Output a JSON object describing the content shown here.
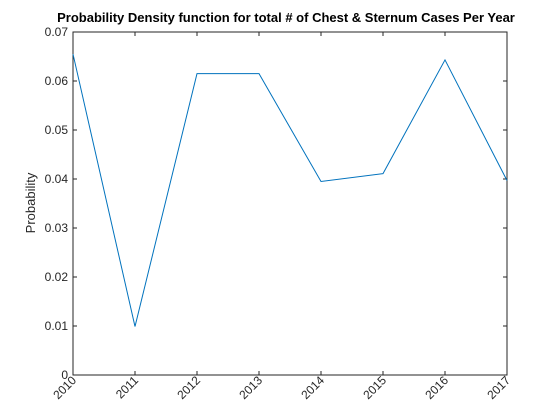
{
  "chart_data": {
    "type": "line",
    "title": "Probability Density function for total # of Chest & Sternum Cases Per Year",
    "xlabel": "",
    "ylabel": "Probability",
    "x": [
      2010,
      2011,
      2012,
      2013,
      2014,
      2015,
      2016,
      2017
    ],
    "series": [
      {
        "values": [
          0.0655,
          0.0099,
          0.0615,
          0.0615,
          0.0395,
          0.0411,
          0.0643,
          0.0397
        ]
      }
    ],
    "xlim": [
      2010,
      2017
    ],
    "ylim": [
      0,
      0.07
    ],
    "xticks": [
      "2010",
      "2011",
      "2012",
      "2013",
      "2014",
      "2015",
      "2016",
      "2017"
    ],
    "yticks": [
      "0",
      "0.01",
      "0.02",
      "0.03",
      "0.04",
      "0.05",
      "0.06",
      "0.07"
    ],
    "yticks_values": [
      0,
      0.01,
      0.02,
      0.03,
      0.04,
      0.05,
      0.06,
      0.07
    ],
    "grid": false,
    "line_color": "#0072BD"
  }
}
